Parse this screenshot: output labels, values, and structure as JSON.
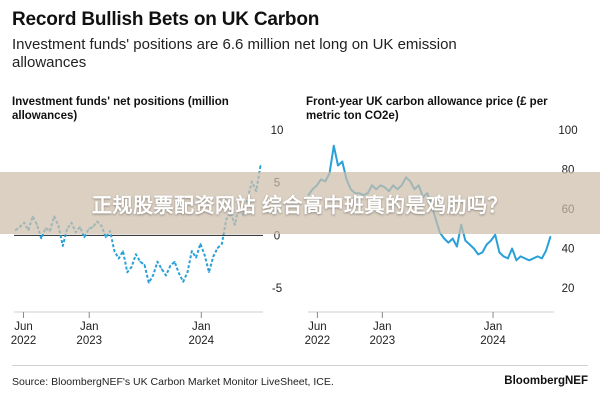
{
  "header": {
    "title": "Record Bullish Bets on UK Carbon",
    "subtitle": "Investment funds' positions are 6.6 million net long on UK emission allowances"
  },
  "footer": {
    "source": "Source: BloombergNEF's UK Carbon Market Monitor LiveSheet, ICE.",
    "brand": "BloombergNEF"
  },
  "overlay": {
    "banner_text": "正规股票配资网站 综合高中班真的是鸡肋吗？"
  },
  "colors": {
    "series": "#29a0d8",
    "zero_line": "#222222",
    "banner": "#cdbeaa"
  },
  "chart_data": [
    {
      "type": "line",
      "title": "Investment funds' net positions (million allowances)",
      "line_style": "dashed",
      "ylim": [
        -5,
        10
      ],
      "yticks": [
        10,
        5,
        0,
        -5
      ],
      "y_axis_side": "right",
      "zero_line": true,
      "grid": false,
      "xlim": [
        "2022-05-01",
        "2024-07-20"
      ],
      "x_ticks": [
        {
          "date": "2022-06-01",
          "label": [
            "Jun",
            "2022"
          ]
        },
        {
          "date": "2023-01-01",
          "label": [
            "Jan",
            "2023"
          ]
        },
        {
          "date": "2024-01-01",
          "label": [
            "Jan",
            "2024"
          ]
        }
      ],
      "series": [
        {
          "x": [
            "2022-05-06",
            "2022-05-20",
            "2022-06-03",
            "2022-06-17",
            "2022-07-01",
            "2022-07-15",
            "2022-07-29",
            "2022-08-12",
            "2022-08-26",
            "2022-09-09",
            "2022-09-23",
            "2022-10-07",
            "2022-10-21",
            "2022-11-04",
            "2022-11-18",
            "2022-12-02",
            "2022-12-16",
            "2022-12-30",
            "2023-01-13",
            "2023-01-27",
            "2023-02-10",
            "2023-02-24",
            "2023-03-10",
            "2023-03-24",
            "2023-04-07",
            "2023-04-21",
            "2023-05-05",
            "2023-05-19",
            "2023-06-02",
            "2023-06-16",
            "2023-06-30",
            "2023-07-14",
            "2023-07-28",
            "2023-08-11",
            "2023-08-25",
            "2023-09-08",
            "2023-09-22",
            "2023-10-06",
            "2023-10-20",
            "2023-11-03",
            "2023-11-17",
            "2023-12-01",
            "2023-12-15",
            "2023-12-29",
            "2024-01-12",
            "2024-01-26",
            "2024-02-09",
            "2024-02-23",
            "2024-03-08",
            "2024-03-22",
            "2024-04-05",
            "2024-04-19",
            "2024-05-03",
            "2024-05-17",
            "2024-05-31",
            "2024-06-14",
            "2024-06-28",
            "2024-07-12"
          ],
          "values": [
            0.5,
            0.8,
            1.2,
            0.5,
            1.8,
            1.0,
            -0.3,
            0.7,
            0.4,
            1.8,
            0.9,
            -1.0,
            0.6,
            1.2,
            0.3,
            0.8,
            -0.2,
            0.6,
            0.8,
            1.3,
            0.9,
            -0.2,
            0.4,
            -1.5,
            -2.2,
            -1.5,
            -3.5,
            -3.0,
            -1.8,
            -2.5,
            -2.8,
            -4.5,
            -3.8,
            -2.5,
            -3.2,
            -3.8,
            -2.9,
            -2.5,
            -3.6,
            -4.4,
            -3.5,
            -1.5,
            -2.1,
            -0.8,
            -1.9,
            -3.5,
            -2.0,
            -1.2,
            -0.8,
            1.5,
            2.2,
            1.0,
            2.8,
            1.9,
            3.5,
            5.1,
            4.2,
            6.6
          ]
        }
      ]
    },
    {
      "type": "line",
      "title": "Front-year UK carbon allowance price (£ per metric ton CO2e)",
      "line_style": "solid",
      "ylim": [
        20,
        100
      ],
      "yticks": [
        100,
        80,
        60,
        40,
        20
      ],
      "y_axis_side": "right",
      "grid": false,
      "xlim": [
        "2022-05-01",
        "2024-07-20"
      ],
      "x_ticks": [
        {
          "date": "2022-06-01",
          "label": [
            "Jun",
            "2022"
          ]
        },
        {
          "date": "2023-01-01",
          "label": [
            "Jan",
            "2023"
          ]
        },
        {
          "date": "2024-01-01",
          "label": [
            "Jan",
            "2024"
          ]
        }
      ],
      "series": [
        {
          "x": [
            "2022-05-02",
            "2022-05-16",
            "2022-05-30",
            "2022-06-13",
            "2022-06-27",
            "2022-07-11",
            "2022-07-25",
            "2022-08-08",
            "2022-08-22",
            "2022-09-05",
            "2022-09-19",
            "2022-10-03",
            "2022-10-17",
            "2022-10-31",
            "2022-11-14",
            "2022-11-28",
            "2022-12-12",
            "2022-12-26",
            "2023-01-09",
            "2023-01-23",
            "2023-02-06",
            "2023-02-20",
            "2023-03-06",
            "2023-03-20",
            "2023-04-03",
            "2023-04-17",
            "2023-05-01",
            "2023-05-15",
            "2023-05-29",
            "2023-06-12",
            "2023-06-26",
            "2023-07-10",
            "2023-07-24",
            "2023-08-07",
            "2023-08-21",
            "2023-09-04",
            "2023-09-18",
            "2023-10-02",
            "2023-10-16",
            "2023-10-30",
            "2023-11-13",
            "2023-11-27",
            "2023-12-11",
            "2023-12-25",
            "2024-01-08",
            "2024-01-22",
            "2024-02-05",
            "2024-02-19",
            "2024-03-04",
            "2024-03-18",
            "2024-04-01",
            "2024-04-15",
            "2024-04-29",
            "2024-05-13",
            "2024-05-27",
            "2024-06-10",
            "2024-06-24",
            "2024-07-08"
          ],
          "values": [
            67,
            70,
            72,
            75,
            74,
            78,
            92,
            82,
            84,
            75,
            70,
            68,
            68,
            67,
            68,
            72,
            70,
            72,
            71,
            69,
            72,
            70,
            72,
            76,
            74,
            70,
            72,
            66,
            68,
            62,
            55,
            48,
            45,
            43,
            45,
            41,
            52,
            44,
            42,
            40,
            37,
            38,
            42,
            44,
            47,
            38,
            36,
            35,
            40,
            34,
            36,
            35,
            34,
            35,
            36,
            35,
            39,
            46
          ]
        }
      ]
    }
  ]
}
